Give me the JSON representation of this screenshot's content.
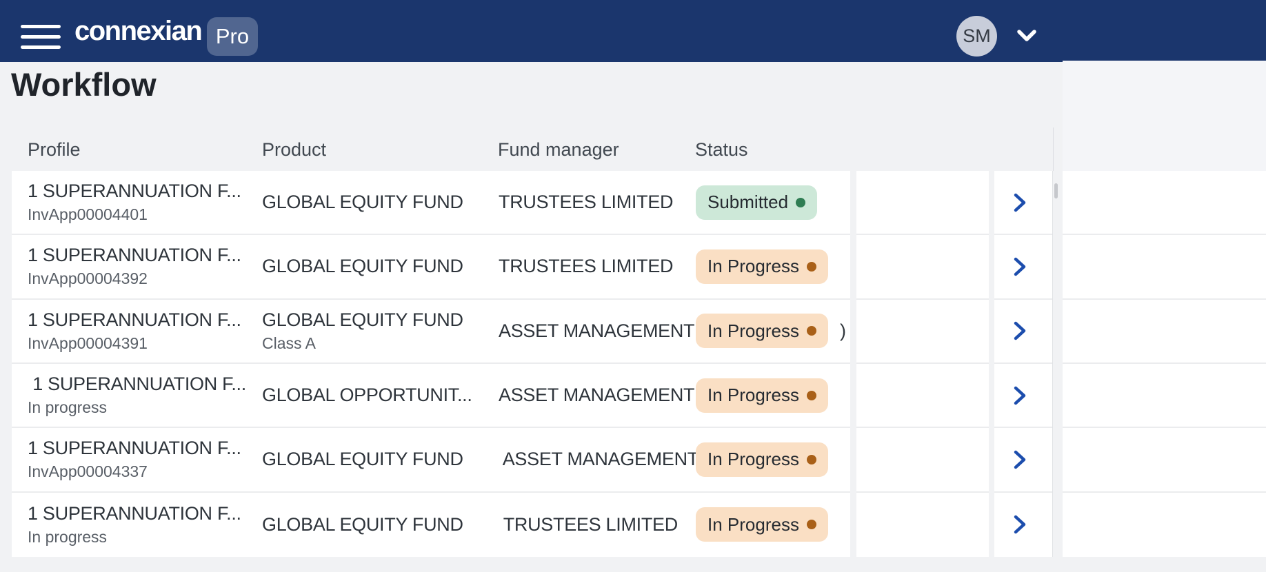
{
  "header": {
    "logo": "connexian",
    "pro_badge": "Pro",
    "avatar_initials": "SM",
    "icons": {
      "menu": "hamburger-menu-icon",
      "account": "chevron-down-icon"
    }
  },
  "page": {
    "title": "Workflow"
  },
  "table": {
    "columns": [
      "Profile",
      "Product",
      "Fund manager",
      "Status"
    ],
    "rows": [
      {
        "profile_name": "1 SUPERANNUATION F...",
        "profile_sub": "InvApp00004401",
        "product": "GLOBAL EQUITY FUND",
        "product_sub": "",
        "fund_manager": "TRUSTEES LIMITED",
        "status": "Submitted",
        "status_type": "success",
        "suffix": ""
      },
      {
        "profile_name": "1 SUPERANNUATION F...",
        "profile_sub": "InvApp00004392",
        "product": "GLOBAL EQUITY FUND",
        "product_sub": "",
        "fund_manager": "TRUSTEES LIMITED",
        "status": "In Progress",
        "status_type": "warning",
        "suffix": ""
      },
      {
        "profile_name": "1 SUPERANNUATION F...",
        "profile_sub": "InvApp00004391",
        "product": "GLOBAL EQUITY FUND",
        "product_sub": "Class A",
        "fund_manager": "ASSET MANAGEMENT",
        "status": "In Progress",
        "status_type": "warning",
        "suffix": ")"
      },
      {
        "profile_name": " 1 SUPERANNUATION F...",
        "profile_sub": "In progress",
        "product": "GLOBAL OPPORTUNIT...",
        "product_sub": "",
        "fund_manager": "ASSET MANAGEMENT",
        "status": "In Progress",
        "status_type": "warning",
        "suffix": ""
      },
      {
        "profile_name": "1 SUPERANNUATION F...",
        "profile_sub": "InvApp00004337",
        "product": "GLOBAL EQUITY FUND",
        "product_sub": "",
        "fund_manager": " ASSET MANAGEMENT",
        "status": "In Progress",
        "status_type": "warning",
        "suffix": ""
      },
      {
        "profile_name": "1 SUPERANNUATION F...",
        "profile_sub": "In progress",
        "product": "GLOBAL EQUITY FUND",
        "product_sub": "",
        "fund_manager": " TRUSTEES LIMITED",
        "status": "In Progress",
        "status_type": "warning",
        "suffix": ""
      }
    ]
  },
  "colors": {
    "header_bg": "#1b366d",
    "page_bg": "#f1f2f4",
    "card_bg": "#ffffff",
    "badge_success_bg": "#cde8d8",
    "badge_success_dot": "#2f7d53",
    "badge_warning_bg": "#fadfc4",
    "badge_warning_dot": "#a96018",
    "chevron_blue": "#1c4dad",
    "avatar_bg": "#c8cdda"
  }
}
